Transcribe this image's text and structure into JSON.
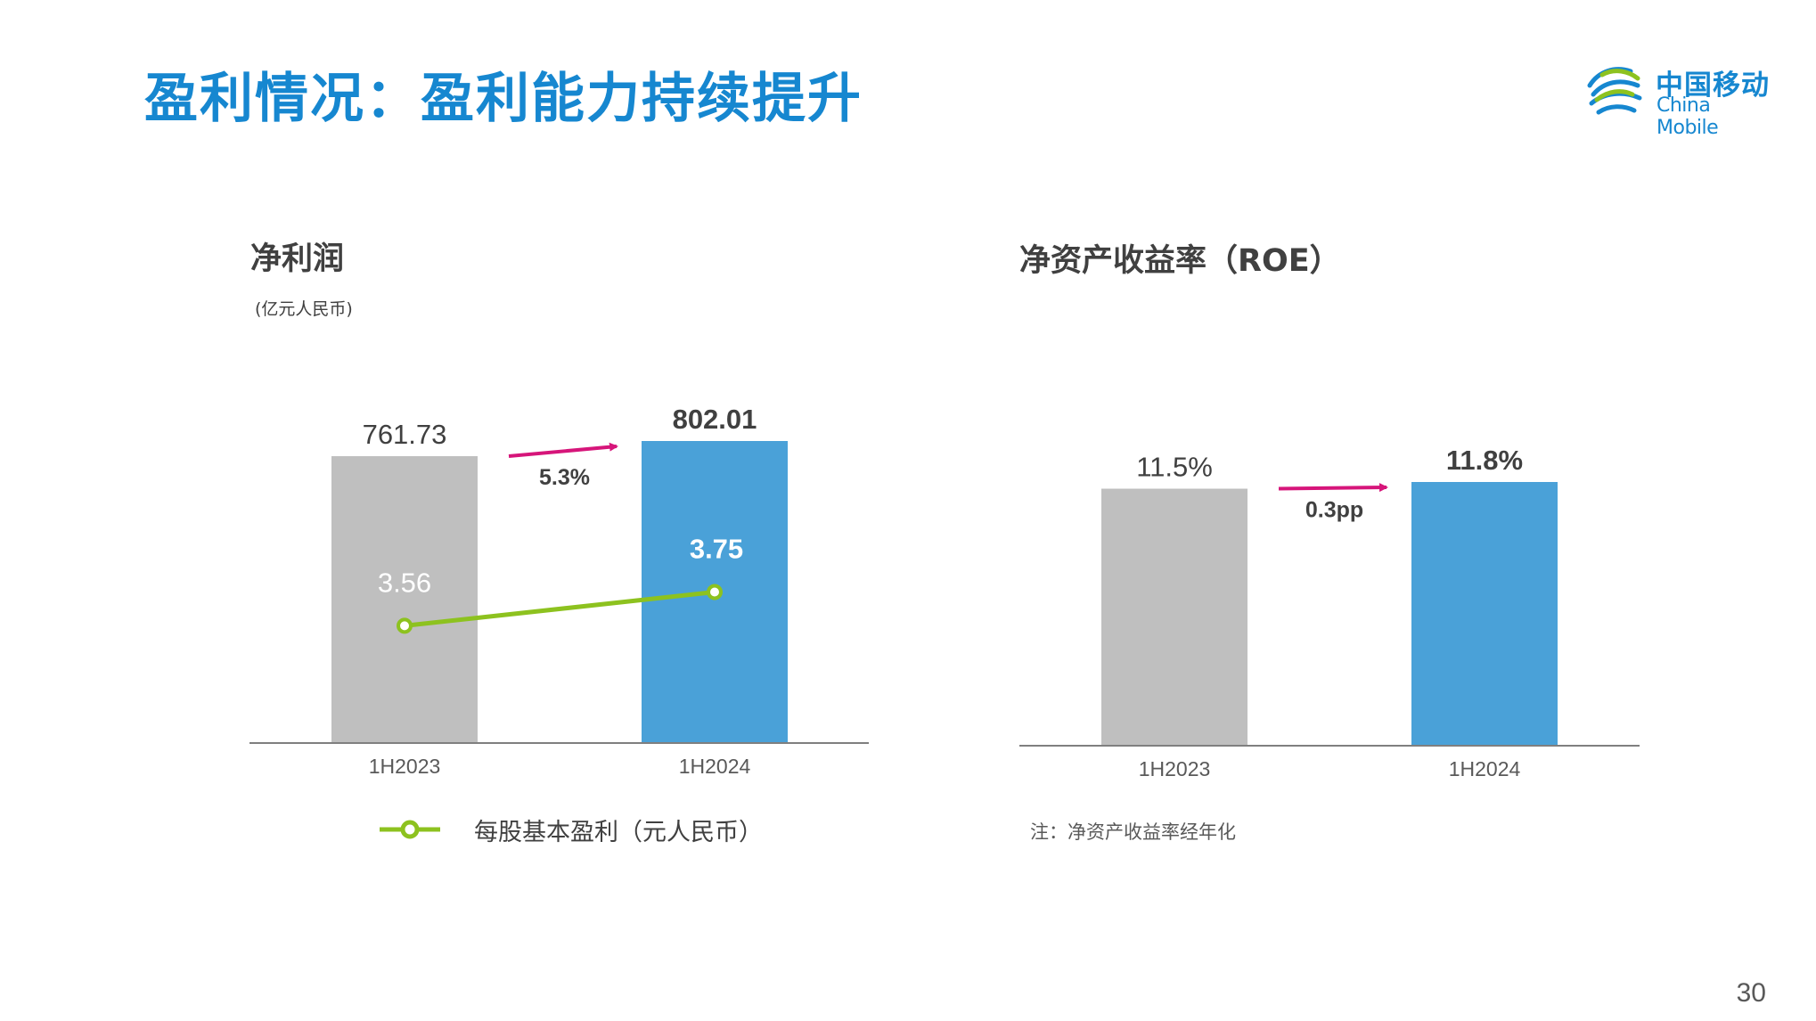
{
  "page": {
    "title": "盈利情况：盈利能力持续提升",
    "page_number": "30"
  },
  "logo": {
    "name_cn": "中国移动",
    "name_en": "China Mobile"
  },
  "colors": {
    "brand_blue": "#1687D0",
    "bar_prior": "#BFBFBF",
    "bar_current": "#4AA1D8",
    "growth_arrow": "#D6157A",
    "eps_line": "#8DC21F"
  },
  "chart_data": [
    {
      "type": "bar",
      "title": "净利润",
      "unit_note": "(亿元人民币)",
      "categories": [
        "1H2023",
        "1H2024"
      ],
      "values": [
        761.73,
        802.01
      ],
      "value_labels": [
        "761.73",
        "802.01"
      ],
      "bar_colors": [
        "#BFBFBF",
        "#4AA1D8"
      ],
      "growth_label": "5.3%",
      "ylim": [
        0,
        802.01
      ],
      "grid": false,
      "overlay_line": {
        "name": "每股基本盈利（元人民币）",
        "values": [
          3.56,
          3.75
        ],
        "value_labels": [
          "3.56",
          "3.75"
        ],
        "ylim": [
          2.9,
          4.6
        ],
        "color": "#8DC21F"
      },
      "legend_position": "bottom"
    },
    {
      "type": "bar",
      "title": "净资产收益率（ROE）",
      "categories": [
        "1H2023",
        "1H2024"
      ],
      "values": [
        11.5,
        11.8
      ],
      "value_labels": [
        "11.5%",
        "11.8%"
      ],
      "bar_colors": [
        "#BFBFBF",
        "#4AA1D8"
      ],
      "growth_label": "0.3pp",
      "ylim": [
        0,
        11.8
      ],
      "grid": false,
      "footnote": "注：净资产收益率经年化"
    }
  ]
}
